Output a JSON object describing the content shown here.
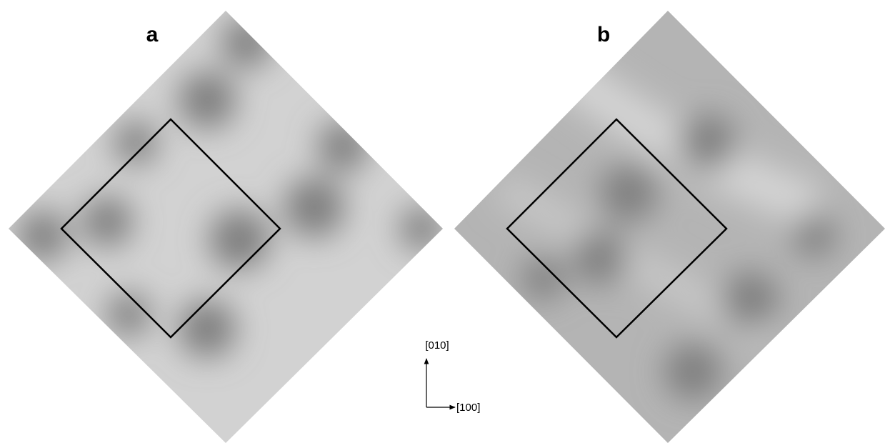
{
  "panels": [
    {
      "label": "a"
    },
    {
      "label": "b"
    }
  ],
  "axes": {
    "y_label": "[010]",
    "x_label": "[100]"
  }
}
